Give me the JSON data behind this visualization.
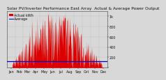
{
  "title": "Solar PV/Inverter Performance East Array  Actual & Average Power Output",
  "subtitle": "Actual kWh  ----",
  "bg_color": "#d8d8d8",
  "plot_bg_color": "#d8d8d8",
  "bar_color": "#dd0000",
  "avg_line_color": "#0000cc",
  "avg_value": 120,
  "ylim": [
    0,
    1100
  ],
  "ytick_positions": [
    0,
    200,
    400,
    600,
    800,
    1000
  ],
  "ytick_labels": [
    "",
    "200",
    "400",
    "600",
    "800",
    "1k"
  ],
  "grid_color": "#888888",
  "text_color": "#111111",
  "num_points": 365,
  "title_fontsize": 4.2,
  "tick_fontsize": 3.5,
  "legend_fontsize": 3.5,
  "spine_color": "#444444"
}
